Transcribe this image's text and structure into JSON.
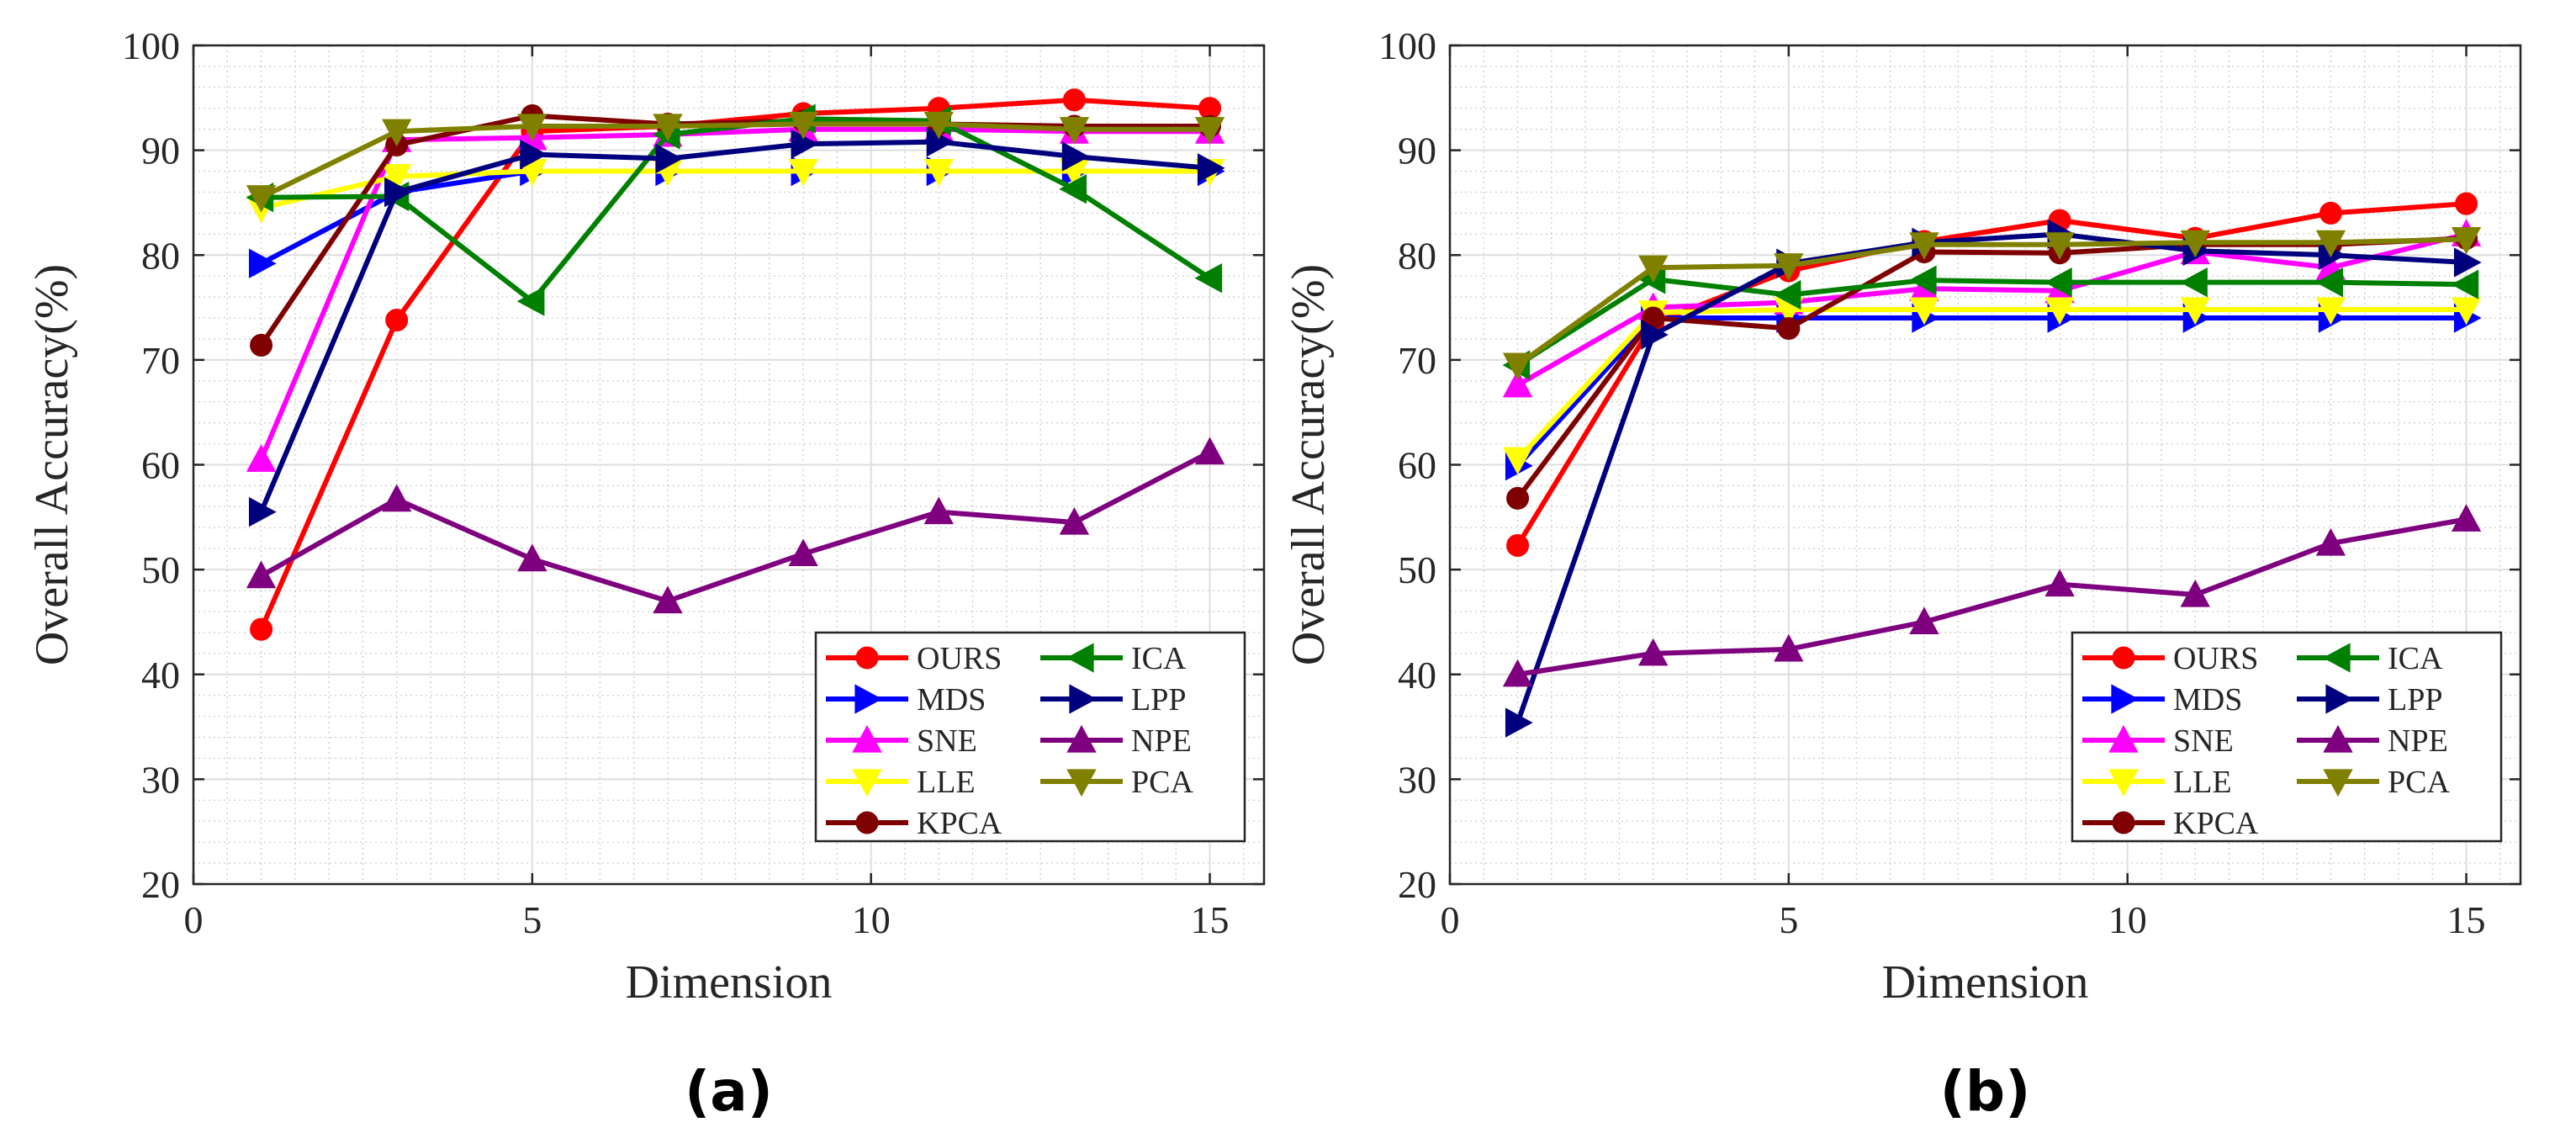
{
  "chart_data": [
    {
      "type": "line",
      "panel_label": "(a)",
      "xlabel": "Dimension",
      "ylabel": "Overall Accuracy(%)",
      "xlim": [
        0,
        15.8
      ],
      "ylim": [
        20,
        100
      ],
      "xticks": [
        0,
        5,
        10,
        15
      ],
      "yticks": [
        20,
        30,
        40,
        50,
        60,
        70,
        80,
        90,
        100
      ],
      "grid": true,
      "legend_position": "bottom-right",
      "x": [
        1,
        3,
        5,
        7,
        9,
        11,
        13,
        15
      ],
      "series": [
        {
          "name": "OURS",
          "color": "#ff0000",
          "marker": "circle",
          "values": [
            44.3,
            73.8,
            91.8,
            92.3,
            93.5,
            94.0,
            94.8,
            94.0
          ]
        },
        {
          "name": "MDS",
          "color": "#0000ff",
          "marker": "triangle-right",
          "values": [
            79.2,
            86.0,
            88.0,
            88.0,
            88.0,
            88.0,
            88.0,
            88.0
          ]
        },
        {
          "name": "SNE",
          "color": "#ff00ff",
          "marker": "triangle-up",
          "values": [
            60.5,
            91.0,
            91.2,
            91.5,
            92.0,
            92.0,
            91.8,
            91.8
          ]
        },
        {
          "name": "LLE",
          "color": "#ffff00",
          "marker": "triangle-down",
          "values": [
            84.5,
            87.5,
            88.0,
            88.0,
            88.0,
            88.0,
            88.0,
            88.0
          ]
        },
        {
          "name": "KPCA",
          "color": "#7f0000",
          "marker": "circle",
          "values": [
            71.4,
            90.5,
            93.3,
            92.5,
            92.8,
            92.5,
            92.3,
            92.3
          ]
        },
        {
          "name": "ICA",
          "color": "#008000",
          "marker": "triangle-left",
          "values": [
            85.5,
            85.6,
            75.6,
            91.5,
            93.0,
            92.8,
            86.3,
            77.8
          ]
        },
        {
          "name": "LPP",
          "color": "#00007f",
          "marker": "triangle-right",
          "values": [
            55.5,
            86.0,
            89.6,
            89.2,
            90.6,
            90.8,
            89.4,
            88.3
          ]
        },
        {
          "name": "NPE",
          "color": "#7f007f",
          "marker": "triangle-up",
          "values": [
            49.4,
            56.7,
            51.0,
            47.0,
            51.5,
            55.5,
            54.5,
            61.2
          ]
        },
        {
          "name": "PCA",
          "color": "#808000",
          "marker": "triangle-down",
          "values": [
            85.5,
            91.8,
            92.3,
            92.3,
            92.5,
            92.5,
            92.0,
            92.0
          ]
        }
      ]
    },
    {
      "type": "line",
      "panel_label": "(b)",
      "xlabel": "Dimension",
      "ylabel": "Overall Accuracy(%)",
      "xlim": [
        0,
        15.8
      ],
      "ylim": [
        20,
        100
      ],
      "xticks": [
        0,
        5,
        10,
        15
      ],
      "yticks": [
        20,
        30,
        40,
        50,
        60,
        70,
        80,
        90,
        100
      ],
      "grid": true,
      "legend_position": "bottom-right",
      "x": [
        1,
        3,
        5,
        7,
        9,
        11,
        13,
        15
      ],
      "series": [
        {
          "name": "OURS",
          "color": "#ff0000",
          "marker": "circle",
          "values": [
            52.3,
            73.5,
            78.5,
            81.3,
            83.3,
            81.6,
            84.0,
            84.9
          ]
        },
        {
          "name": "MDS",
          "color": "#0000ff",
          "marker": "triangle-right",
          "values": [
            59.9,
            74.0,
            74.0,
            74.0,
            74.0,
            74.0,
            74.0,
            74.0
          ]
        },
        {
          "name": "SNE",
          "color": "#ff00ff",
          "marker": "triangle-up",
          "values": [
            67.6,
            75.0,
            75.5,
            76.8,
            76.6,
            80.3,
            78.8,
            82.0
          ]
        },
        {
          "name": "LLE",
          "color": "#ffff00",
          "marker": "triangle-down",
          "values": [
            60.5,
            74.5,
            74.8,
            74.8,
            74.8,
            74.8,
            74.8,
            74.8
          ]
        },
        {
          "name": "KPCA",
          "color": "#7f0000",
          "marker": "circle",
          "values": [
            56.8,
            74.0,
            73.0,
            80.3,
            80.2,
            81.0,
            81.0,
            81.6
          ]
        },
        {
          "name": "ICA",
          "color": "#008000",
          "marker": "triangle-left",
          "values": [
            69.5,
            77.7,
            76.2,
            77.6,
            77.4,
            77.4,
            77.4,
            77.2
          ]
        },
        {
          "name": "LPP",
          "color": "#00007f",
          "marker": "triangle-right",
          "values": [
            35.4,
            72.4,
            79.2,
            81.2,
            82.0,
            80.4,
            80.0,
            79.3
          ]
        },
        {
          "name": "NPE",
          "color": "#7f007f",
          "marker": "triangle-up",
          "values": [
            40.0,
            42.0,
            42.4,
            45.0,
            48.6,
            47.6,
            52.5,
            54.8
          ]
        },
        {
          "name": "PCA",
          "color": "#808000",
          "marker": "triangle-down",
          "values": [
            69.5,
            78.8,
            79.0,
            81.0,
            81.0,
            81.2,
            81.2,
            81.5
          ]
        }
      ]
    }
  ]
}
